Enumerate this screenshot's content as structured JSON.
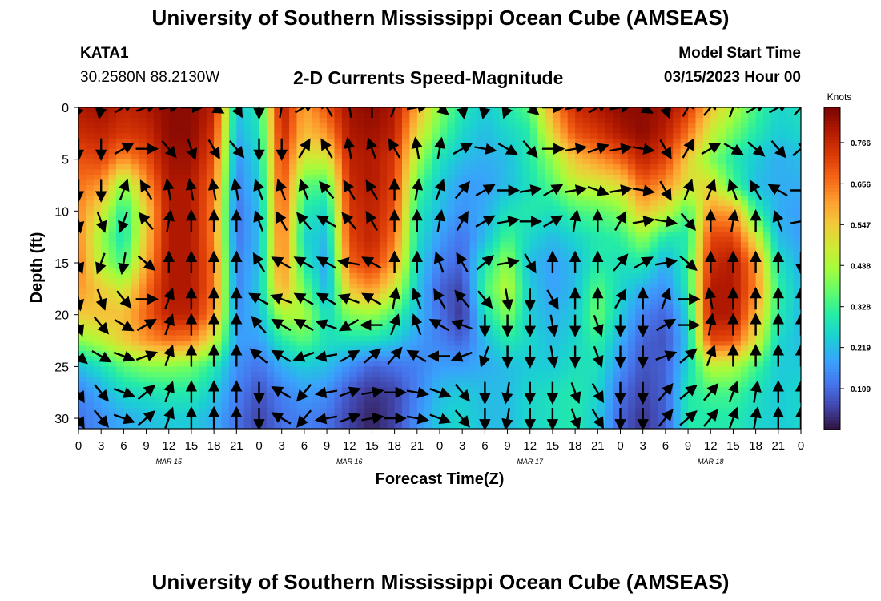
{
  "page": {
    "title": "University of Southern Mississippi Ocean Cube (AMSEAS)",
    "footer_title": "University of Southern Mississippi Ocean Cube (AMSEAS)",
    "station": "KATA1",
    "coords": "30.2580N  88.2130W",
    "plot_title": "2-D Currents Speed-Magnitude",
    "model_start_label": "Model Start Time",
    "model_start_value": "03/15/2023 Hour 00"
  },
  "chart_data": {
    "type": "heatmap",
    "title": "2-D Currents Speed-Magnitude",
    "xlabel": "Forecast Time(Z)",
    "ylabel": "Depth (ft)",
    "x_tick_labels": [
      "0",
      "3",
      "6",
      "9",
      "12",
      "15",
      "18",
      "21",
      "0",
      "3",
      "6",
      "9",
      "12",
      "15",
      "18",
      "21",
      "0",
      "3",
      "6",
      "9",
      "12",
      "15",
      "18",
      "21",
      "0",
      "3",
      "6",
      "9",
      "12",
      "15",
      "18",
      "21",
      "0"
    ],
    "x_range_hours": [
      0,
      96
    ],
    "day_labels": [
      {
        "label": "MAR 15",
        "hour": 12
      },
      {
        "label": "MAR 16",
        "hour": 36
      },
      {
        "label": "MAR 17",
        "hour": 60
      },
      {
        "label": "MAR 18",
        "hour": 84
      }
    ],
    "y_ticks": [
      0,
      5,
      10,
      15,
      20,
      25,
      30
    ],
    "ylim": [
      0,
      31
    ],
    "y_inverted": true,
    "colorbar": {
      "unit": "Knots",
      "ticks": [
        "0.766",
        "0.656",
        "0.547",
        "0.438",
        "0.328",
        "0.219",
        "0.109"
      ],
      "range": [
        0,
        0.86
      ],
      "colormap": [
        "#30123b",
        "#4145ab",
        "#4675ed",
        "#39a2fc",
        "#1bcfd4",
        "#24eca6",
        "#61fc6c",
        "#a4fc3b",
        "#d1e834",
        "#f3c63a",
        "#fe9b2d",
        "#f36315",
        "#d93806",
        "#b11901",
        "#7a0402"
      ]
    },
    "speed_field": {
      "depth_ft": [
        0,
        2.5,
        5,
        7.5,
        10,
        12.5,
        15,
        17.5,
        20,
        22.5,
        25,
        27.5,
        30
      ],
      "hour": [
        0,
        3,
        6,
        9,
        12,
        15,
        18,
        21,
        24,
        27,
        30,
        33,
        36,
        39,
        42,
        45,
        48,
        51,
        54,
        57,
        60,
        63,
        66,
        69,
        72,
        75,
        78,
        81,
        84,
        87,
        90,
        93,
        96
      ],
      "values_knots": [
        [
          0.8,
          0.82,
          0.78,
          0.8,
          0.84,
          0.84,
          0.78,
          0.22,
          0.3,
          0.8,
          0.6,
          0.7,
          0.82,
          0.84,
          0.8,
          0.6,
          0.4,
          0.3,
          0.24,
          0.3,
          0.36,
          0.62,
          0.76,
          0.8,
          0.84,
          0.84,
          0.82,
          0.74,
          0.56,
          0.45,
          0.34,
          0.26,
          0.28
        ],
        [
          0.76,
          0.78,
          0.74,
          0.76,
          0.84,
          0.84,
          0.74,
          0.2,
          0.28,
          0.78,
          0.56,
          0.62,
          0.8,
          0.82,
          0.78,
          0.52,
          0.36,
          0.26,
          0.22,
          0.26,
          0.3,
          0.54,
          0.7,
          0.74,
          0.8,
          0.84,
          0.78,
          0.66,
          0.48,
          0.38,
          0.3,
          0.24,
          0.26
        ],
        [
          0.7,
          0.72,
          0.62,
          0.7,
          0.82,
          0.82,
          0.7,
          0.16,
          0.26,
          0.74,
          0.48,
          0.48,
          0.78,
          0.8,
          0.74,
          0.44,
          0.28,
          0.22,
          0.2,
          0.22,
          0.3,
          0.42,
          0.56,
          0.62,
          0.68,
          0.78,
          0.72,
          0.54,
          0.4,
          0.3,
          0.24,
          0.2,
          0.22
        ],
        [
          0.66,
          0.62,
          0.4,
          0.62,
          0.8,
          0.8,
          0.66,
          0.14,
          0.24,
          0.72,
          0.36,
          0.34,
          0.76,
          0.8,
          0.72,
          0.36,
          0.24,
          0.18,
          0.18,
          0.22,
          0.28,
          0.36,
          0.46,
          0.48,
          0.52,
          0.68,
          0.62,
          0.5,
          0.52,
          0.34,
          0.22,
          0.2,
          0.2
        ],
        [
          0.64,
          0.5,
          0.3,
          0.54,
          0.8,
          0.8,
          0.64,
          0.12,
          0.22,
          0.7,
          0.3,
          0.26,
          0.74,
          0.78,
          0.7,
          0.3,
          0.22,
          0.16,
          0.2,
          0.28,
          0.3,
          0.28,
          0.34,
          0.36,
          0.4,
          0.56,
          0.48,
          0.34,
          0.62,
          0.6,
          0.32,
          0.2,
          0.18
        ],
        [
          0.64,
          0.42,
          0.28,
          0.56,
          0.8,
          0.8,
          0.64,
          0.12,
          0.22,
          0.68,
          0.26,
          0.22,
          0.72,
          0.78,
          0.66,
          0.28,
          0.18,
          0.12,
          0.22,
          0.34,
          0.26,
          0.22,
          0.26,
          0.3,
          0.32,
          0.42,
          0.3,
          0.3,
          0.72,
          0.72,
          0.5,
          0.22,
          0.18
        ],
        [
          0.66,
          0.44,
          0.34,
          0.6,
          0.8,
          0.8,
          0.66,
          0.14,
          0.22,
          0.66,
          0.3,
          0.18,
          0.68,
          0.74,
          0.6,
          0.26,
          0.14,
          0.1,
          0.3,
          0.42,
          0.22,
          0.18,
          0.22,
          0.3,
          0.28,
          0.3,
          0.2,
          0.32,
          0.76,
          0.8,
          0.62,
          0.28,
          0.2
        ],
        [
          0.62,
          0.54,
          0.48,
          0.66,
          0.8,
          0.8,
          0.66,
          0.14,
          0.24,
          0.6,
          0.38,
          0.2,
          0.56,
          0.62,
          0.48,
          0.24,
          0.1,
          0.06,
          0.34,
          0.46,
          0.24,
          0.18,
          0.22,
          0.36,
          0.26,
          0.2,
          0.16,
          0.3,
          0.8,
          0.8,
          0.64,
          0.32,
          0.22
        ],
        [
          0.54,
          0.56,
          0.56,
          0.68,
          0.78,
          0.78,
          0.62,
          0.16,
          0.22,
          0.44,
          0.44,
          0.26,
          0.4,
          0.42,
          0.34,
          0.22,
          0.12,
          0.04,
          0.28,
          0.4,
          0.24,
          0.2,
          0.24,
          0.38,
          0.24,
          0.14,
          0.1,
          0.26,
          0.8,
          0.8,
          0.58,
          0.3,
          0.22
        ],
        [
          0.4,
          0.46,
          0.54,
          0.62,
          0.66,
          0.64,
          0.48,
          0.18,
          0.18,
          0.3,
          0.36,
          0.28,
          0.28,
          0.28,
          0.24,
          0.18,
          0.14,
          0.1,
          0.22,
          0.3,
          0.26,
          0.22,
          0.26,
          0.32,
          0.2,
          0.1,
          0.08,
          0.24,
          0.72,
          0.7,
          0.5,
          0.26,
          0.22
        ],
        [
          0.22,
          0.28,
          0.36,
          0.4,
          0.4,
          0.38,
          0.3,
          0.16,
          0.12,
          0.2,
          0.24,
          0.22,
          0.16,
          0.1,
          0.12,
          0.14,
          0.18,
          0.18,
          0.2,
          0.22,
          0.24,
          0.24,
          0.28,
          0.28,
          0.16,
          0.08,
          0.1,
          0.26,
          0.46,
          0.44,
          0.34,
          0.24,
          0.24
        ],
        [
          0.14,
          0.2,
          0.26,
          0.28,
          0.3,
          0.3,
          0.24,
          0.14,
          0.08,
          0.14,
          0.18,
          0.16,
          0.08,
          0.04,
          0.06,
          0.14,
          0.22,
          0.24,
          0.22,
          0.22,
          0.26,
          0.28,
          0.3,
          0.26,
          0.12,
          0.06,
          0.1,
          0.3,
          0.34,
          0.34,
          0.28,
          0.24,
          0.26
        ],
        [
          0.12,
          0.16,
          0.2,
          0.22,
          0.24,
          0.24,
          0.2,
          0.12,
          0.06,
          0.12,
          0.14,
          0.12,
          0.06,
          0.02,
          0.06,
          0.16,
          0.24,
          0.26,
          0.22,
          0.22,
          0.26,
          0.28,
          0.3,
          0.24,
          0.1,
          0.04,
          0.1,
          0.3,
          0.3,
          0.3,
          0.26,
          0.24,
          0.26
        ]
      ]
    },
    "vectors": {
      "depth_ft": [
        0,
        4,
        8,
        11,
        15,
        18.5,
        21,
        24,
        27.5,
        30
      ],
      "hour": [
        0,
        3,
        6,
        9,
        12,
        15,
        18,
        21,
        24,
        27,
        30,
        33,
        36,
        39,
        42,
        45,
        48,
        51,
        54,
        57,
        60,
        63,
        66,
        69,
        72,
        75,
        78,
        81,
        84,
        87,
        90,
        93,
        96
      ],
      "direction_deg": [
        [
          200,
          190,
          60,
          70,
          80,
          90,
          120,
          150,
          180,
          10,
          60,
          330,
          350,
          0,
          20,
          80,
          130,
          170,
          190,
          200,
          130,
          90,
          80,
          60,
          80,
          120,
          160,
          30,
          40,
          20,
          60,
          60,
          40
        ],
        [
          180,
          180,
          60,
          90,
          140,
          160,
          150,
          140,
          180,
          180,
          30,
          330,
          350,
          340,
          330,
          350,
          10,
          60,
          100,
          120,
          140,
          90,
          80,
          70,
          80,
          100,
          150,
          30,
          60,
          120,
          130,
          140,
          50
        ],
        [
          180,
          180,
          20,
          330,
          350,
          350,
          350,
          350,
          340,
          340,
          340,
          320,
          330,
          330,
          0,
          10,
          20,
          40,
          60,
          90,
          80,
          60,
          80,
          110,
          80,
          100,
          150,
          20,
          20,
          340,
          330,
          300,
          90
        ],
        [
          170,
          160,
          200,
          320,
          10,
          0,
          0,
          0,
          340,
          330,
          320,
          300,
          320,
          330,
          0,
          0,
          10,
          30,
          60,
          80,
          90,
          60,
          10,
          0,
          30,
          80,
          100,
          140,
          0,
          10,
          0,
          340,
          80
        ],
        [
          160,
          200,
          190,
          130,
          0,
          0,
          0,
          0,
          330,
          300,
          300,
          300,
          280,
          300,
          0,
          0,
          340,
          330,
          50,
          80,
          150,
          0,
          0,
          0,
          40,
          60,
          80,
          130,
          0,
          0,
          0,
          0,
          180
        ],
        [
          170,
          160,
          140,
          90,
          20,
          0,
          0,
          0,
          300,
          290,
          300,
          300,
          290,
          300,
          10,
          340,
          330,
          320,
          140,
          170,
          180,
          150,
          0,
          0,
          30,
          0,
          20,
          90,
          350,
          0,
          0,
          0,
          0
        ],
        [
          160,
          140,
          120,
          60,
          20,
          0,
          0,
          0,
          320,
          300,
          300,
          290,
          240,
          270,
          20,
          340,
          300,
          290,
          180,
          180,
          180,
          170,
          180,
          160,
          180,
          180,
          60,
          90,
          10,
          0,
          0,
          0,
          0
        ],
        [
          130,
          120,
          110,
          70,
          20,
          0,
          0,
          0,
          310,
          300,
          250,
          260,
          60,
          50,
          40,
          300,
          270,
          250,
          200,
          180,
          180,
          170,
          180,
          160,
          180,
          180,
          70,
          50,
          20,
          0,
          0,
          0,
          0
        ],
        [
          150,
          140,
          110,
          50,
          20,
          0,
          0,
          0,
          180,
          300,
          220,
          260,
          70,
          80,
          90,
          100,
          110,
          140,
          180,
          190,
          180,
          180,
          160,
          150,
          180,
          180,
          40,
          50,
          40,
          20,
          10,
          0,
          0
        ],
        [
          150,
          140,
          110,
          50,
          20,
          0,
          0,
          0,
          180,
          300,
          220,
          260,
          70,
          80,
          90,
          100,
          110,
          140,
          180,
          190,
          180,
          180,
          160,
          150,
          180,
          180,
          40,
          50,
          40,
          20,
          10,
          0,
          0
        ]
      ]
    }
  }
}
